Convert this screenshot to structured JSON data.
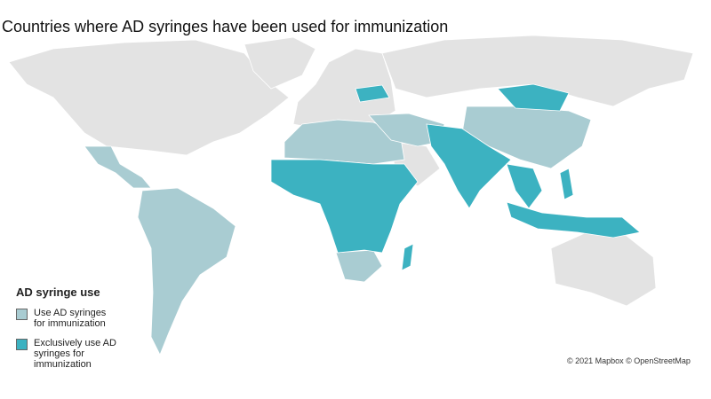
{
  "title": "Countries where AD syringes have been used for immunization",
  "legend": {
    "title": "AD syringe use",
    "items": [
      {
        "label": "Use AD syringes for immunization",
        "color": "#a9ccd2"
      },
      {
        "label": "Exclusively use AD syringes for immunization",
        "color": "#3cb2c1"
      }
    ]
  },
  "attribution": "© 2021 Mapbox © OpenStreetMap"
}
